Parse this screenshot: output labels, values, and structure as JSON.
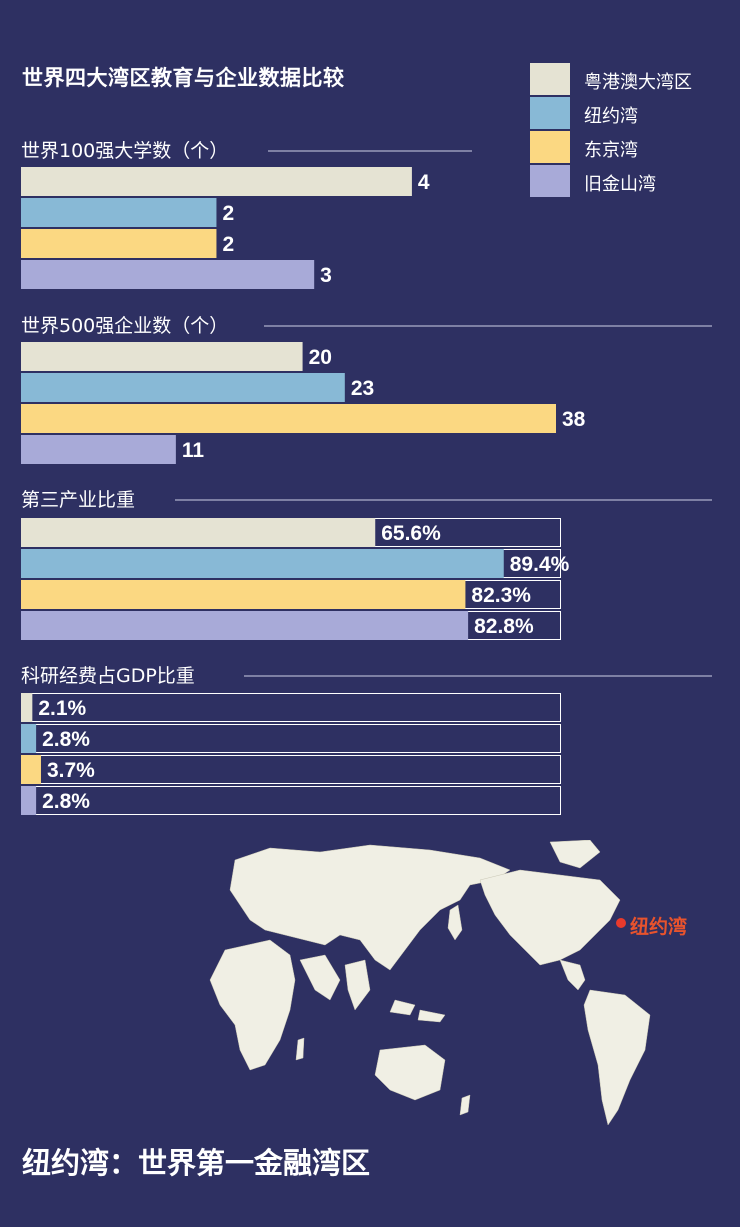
{
  "title": "世界四大湾区教育与企业数据比较",
  "footer_title": "纽约湾：世界第一金融湾区",
  "map": {
    "marker_label": "纽约湾"
  },
  "chart_data": {
    "type": "bar",
    "series": [
      {
        "name": "粤港澳大湾区",
        "color": "#e5e3d3"
      },
      {
        "name": "纽约湾",
        "color": "#88b9d6"
      },
      {
        "name": "东京湾",
        "color": "#fbd882"
      },
      {
        "name": "旧金山湾",
        "color": "#a8aad8"
      }
    ],
    "panels": [
      {
        "title": "世界100强大学数（个）",
        "values": [
          4,
          2,
          2,
          3
        ],
        "labels": [
          "4",
          "2",
          "2",
          "3"
        ],
        "max": 4.4,
        "boxed": false
      },
      {
        "title": "世界500强企业数（个）",
        "values": [
          20,
          23,
          38,
          11
        ],
        "labels": [
          "20",
          "23",
          "38",
          "11"
        ],
        "max": 38,
        "boxed": false
      },
      {
        "title": "第三产业比重",
        "values": [
          65.6,
          89.4,
          82.3,
          82.8
        ],
        "labels": [
          "65.6%",
          "89.4%",
          "82.3%",
          "82.8%"
        ],
        "max": 100,
        "boxed": true
      },
      {
        "title": "科研经费占GDP比重",
        "values": [
          2.1,
          2.8,
          3.7,
          2.8
        ],
        "labels": [
          "2.1%",
          "2.8%",
          "3.7%",
          "2.8%"
        ],
        "max": 100,
        "boxed": true
      }
    ]
  }
}
